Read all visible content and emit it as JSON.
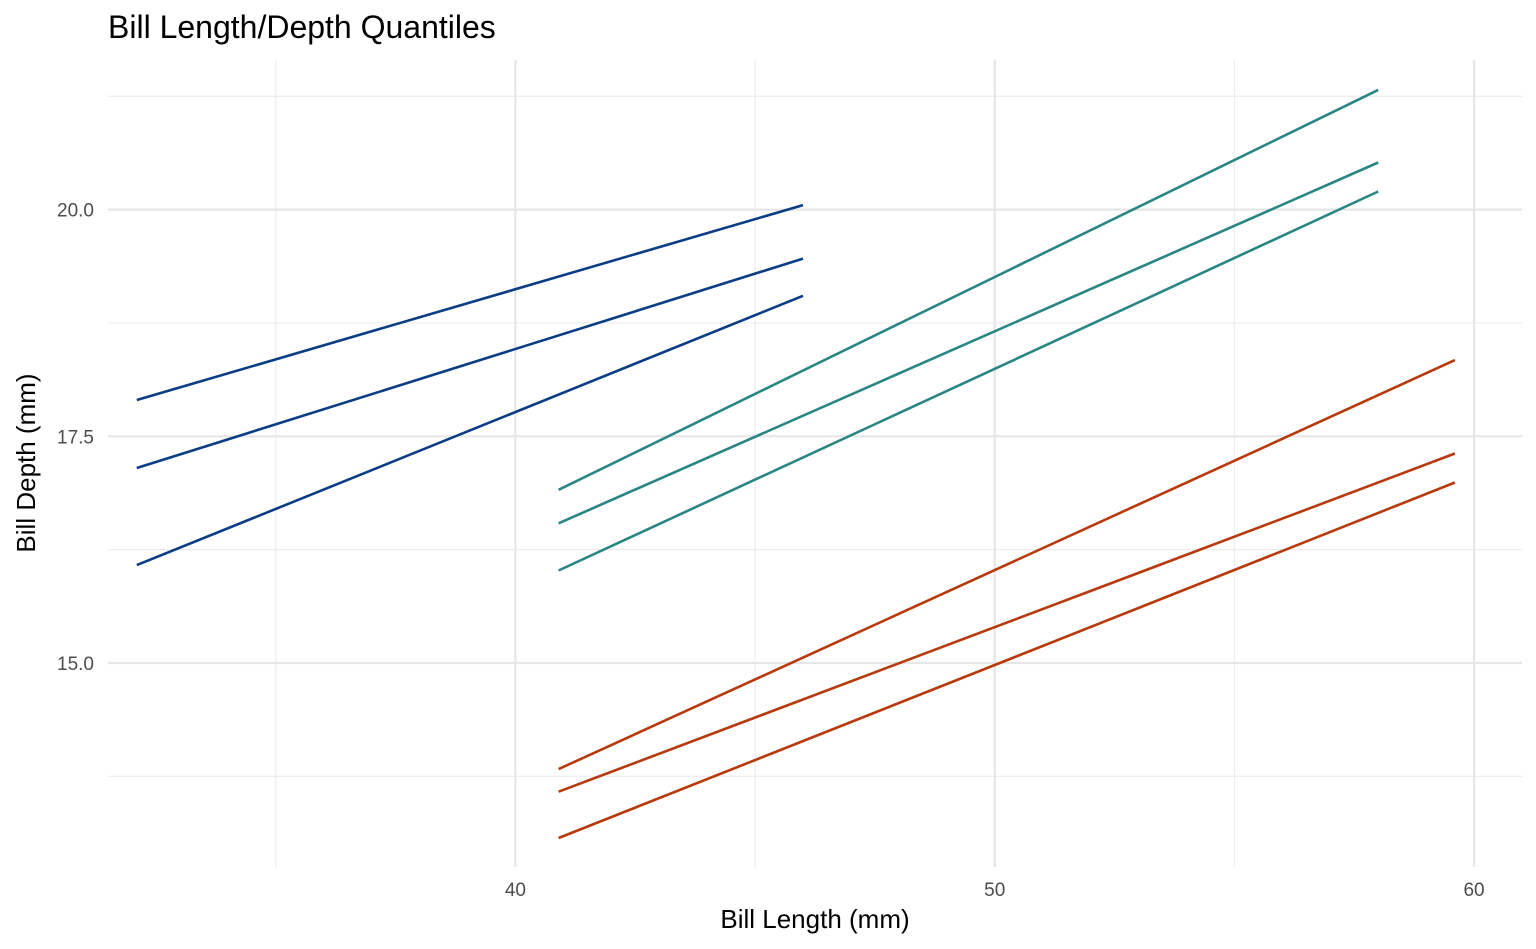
{
  "chart_data": {
    "type": "line",
    "title": "Bill Length/Depth Quantiles",
    "xlabel": "Bill Length (mm)",
    "ylabel": "Bill Depth (mm)",
    "xlim": [
      31.5,
      61
    ],
    "ylim": [
      12.75,
      21.65
    ],
    "x_ticks": [
      40,
      50,
      60
    ],
    "x_tick_labels": [
      "40",
      "50",
      "60"
    ],
    "x_minor_ticks": [
      35,
      45,
      55
    ],
    "y_ticks": [
      15.0,
      17.5,
      20.0
    ],
    "y_tick_labels": [
      "15.0",
      "17.5",
      "20.0"
    ],
    "y_minor_ticks": [
      13.75,
      16.25,
      18.75,
      21.25
    ],
    "grid": true,
    "legend": "none",
    "series": [
      {
        "color": "#0b3d86",
        "x": [
          32.1,
          46.0
        ],
        "y": [
          17.9,
          20.05
        ]
      },
      {
        "color": "#0b3d86",
        "x": [
          32.1,
          46.0
        ],
        "y": [
          17.15,
          19.46
        ]
      },
      {
        "color": "#0b3d86",
        "x": [
          32.1,
          46.0
        ],
        "y": [
          16.08,
          19.05
        ]
      },
      {
        "color": "#2a8685",
        "x": [
          40.9,
          58.0
        ],
        "y": [
          16.91,
          21.32
        ]
      },
      {
        "color": "#2a8685",
        "x": [
          40.9,
          58.0
        ],
        "y": [
          16.54,
          20.52
        ]
      },
      {
        "color": "#2a8685",
        "x": [
          40.9,
          58.0
        ],
        "y": [
          16.02,
          20.2
        ]
      },
      {
        "color": "#b63a0c",
        "x": [
          40.9,
          59.6
        ],
        "y": [
          13.83,
          18.34
        ]
      },
      {
        "color": "#b63a0c",
        "x": [
          40.9,
          59.6
        ],
        "y": [
          13.58,
          17.31
        ]
      },
      {
        "color": "#b63a0c",
        "x": [
          40.9,
          59.6
        ],
        "y": [
          13.07,
          16.99
        ]
      }
    ]
  }
}
